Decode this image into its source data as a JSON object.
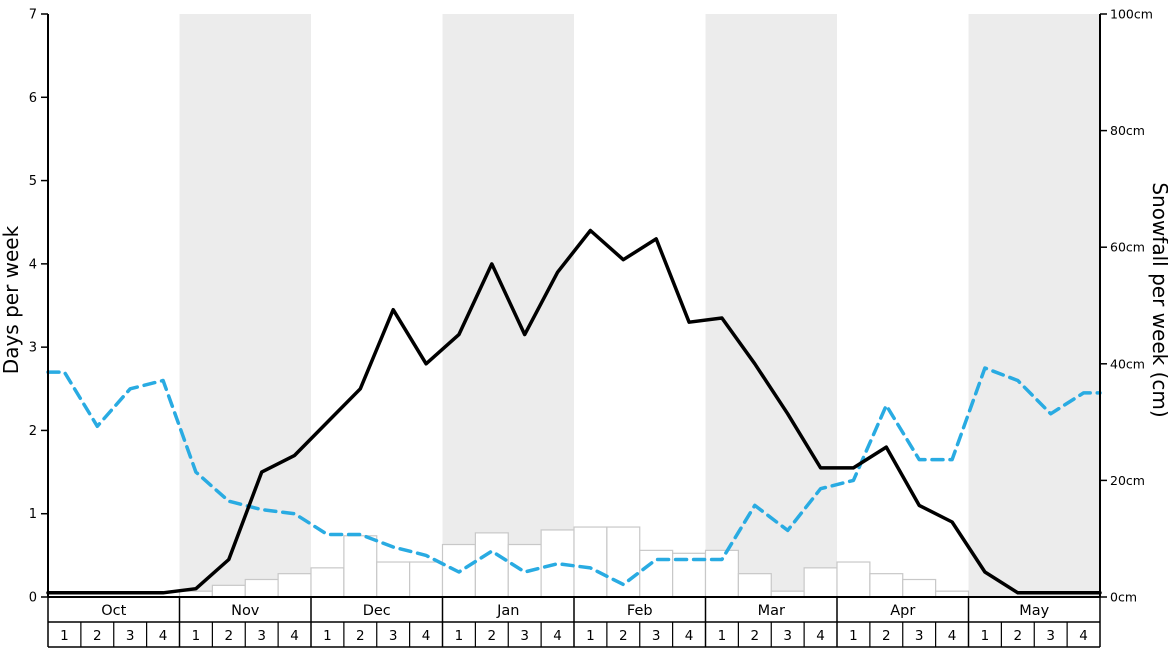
{
  "chart_data": {
    "type": "line",
    "title": "",
    "left_axis": {
      "label": "Days per week",
      "min": 0,
      "max": 7,
      "ticks": [
        0,
        1,
        2,
        3,
        4,
        5,
        6,
        7
      ]
    },
    "right_axis": {
      "label": "Snowfall per week (cm)",
      "min": 0,
      "max": 100,
      "tick_values": [
        0,
        20,
        40,
        60,
        80,
        100
      ],
      "tick_labels": [
        "0cm",
        "20cm",
        "40cm",
        "60cm",
        "80cm",
        "100cm"
      ]
    },
    "months": [
      "Oct",
      "Nov",
      "Dec",
      "Jan",
      "Feb",
      "Mar",
      "Apr",
      "May"
    ],
    "weeks_per_month": 4,
    "week_labels": [
      "1",
      "2",
      "3",
      "4"
    ],
    "shaded_month_indexes": [
      1,
      3,
      5,
      7
    ],
    "legend_position": "none",
    "grid": false,
    "colors": {
      "days_line": "#000000",
      "secondary_line": "#29abe2",
      "bar_fill": "#ffffff",
      "bar_border": "#c8c8c8",
      "band": "#ececec",
      "axis": "#000000"
    },
    "series": [
      {
        "name": "days-per-week-line",
        "type": "line",
        "dashed": false,
        "axis": "left",
        "values": [
          0.05,
          0.05,
          0.05,
          0.05,
          0.1,
          0.45,
          1.5,
          1.7,
          2.1,
          2.5,
          3.45,
          2.8,
          3.15,
          4.0,
          3.15,
          3.9,
          4.4,
          4.05,
          4.3,
          3.3,
          3.35,
          2.8,
          2.2,
          1.55,
          1.55,
          1.8,
          1.1,
          0.9,
          0.3,
          0.05,
          0.05,
          0.05
        ]
      },
      {
        "name": "secondary-dashed-line",
        "type": "line",
        "dashed": true,
        "axis": "left",
        "values": [
          2.7,
          2.05,
          2.5,
          2.6,
          1.5,
          1.15,
          1.05,
          1.0,
          0.75,
          0.75,
          0.6,
          0.5,
          0.3,
          0.55,
          0.3,
          0.4,
          0.35,
          0.15,
          0.45,
          0.45,
          0.45,
          1.1,
          0.8,
          1.3,
          1.4,
          2.3,
          1.65,
          1.65,
          2.75,
          2.6,
          2.2,
          2.45
        ]
      },
      {
        "name": "snowfall-per-week-bars",
        "type": "bar",
        "axis": "right",
        "values": [
          0,
          0,
          0,
          0,
          1,
          2,
          3,
          4,
          5,
          10.5,
          6,
          6,
          9,
          11,
          9,
          11.5,
          12,
          12,
          8,
          7.5,
          8,
          4,
          1,
          5,
          6,
          4,
          3,
          1,
          0,
          0,
          0,
          0
        ]
      }
    ]
  }
}
